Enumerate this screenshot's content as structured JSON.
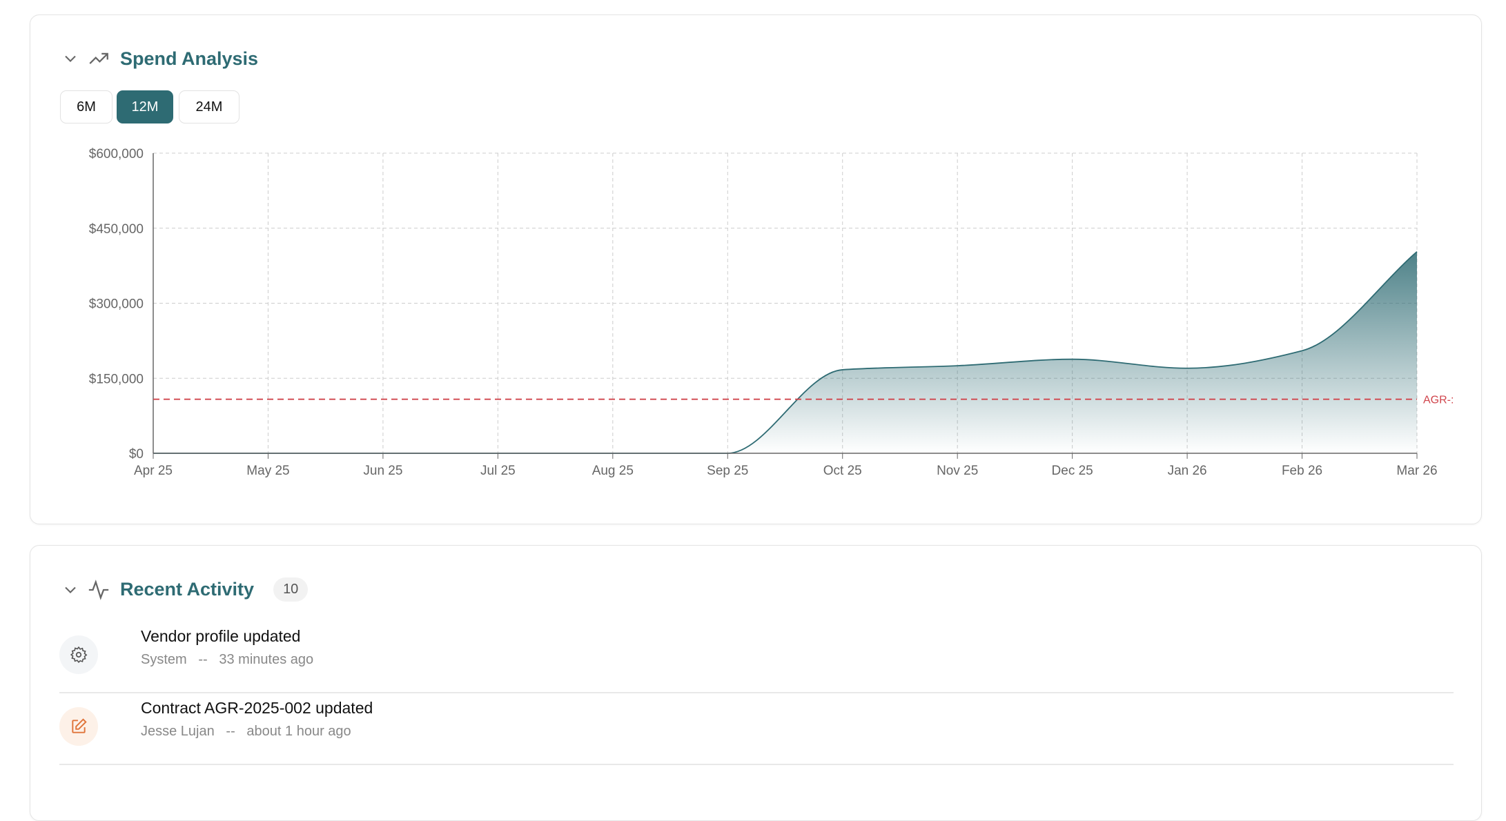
{
  "spend": {
    "title": "Spend Analysis",
    "ranges": [
      "6M",
      "12M",
      "24M"
    ],
    "active_range": "12M",
    "accent": "#2e6b73"
  },
  "chart_data": {
    "type": "area",
    "categories": [
      "Apr 25",
      "May 25",
      "Jun 25",
      "Jul 25",
      "Aug 25",
      "Sep 25",
      "Oct 25",
      "Nov 25",
      "Dec 25",
      "Jan 26",
      "Feb 26",
      "Mar 26"
    ],
    "values": [
      0,
      0,
      0,
      0,
      0,
      0,
      167000,
      175000,
      188000,
      170000,
      205000,
      403000
    ],
    "ylim": [
      0,
      600000
    ],
    "yticks": [
      "$0",
      "$150,000",
      "$300,000",
      "$450,000",
      "$600,000"
    ],
    "ytick_values": [
      0,
      150000,
      300000,
      450000,
      600000
    ],
    "grid": true,
    "reference_line": {
      "label": "AGR-:",
      "value": 108000,
      "color": "#d0454c"
    }
  },
  "activity": {
    "title": "Recent Activity",
    "count": "10",
    "items": [
      {
        "icon": "gear-icon",
        "title": "Vendor profile updated",
        "actor": "System",
        "sep": "--",
        "time": "33 minutes ago"
      },
      {
        "icon": "edit-icon",
        "title": "Contract AGR-2025-002 updated",
        "actor": "Jesse Lujan",
        "sep": "--",
        "time": "about 1 hour ago"
      }
    ]
  }
}
